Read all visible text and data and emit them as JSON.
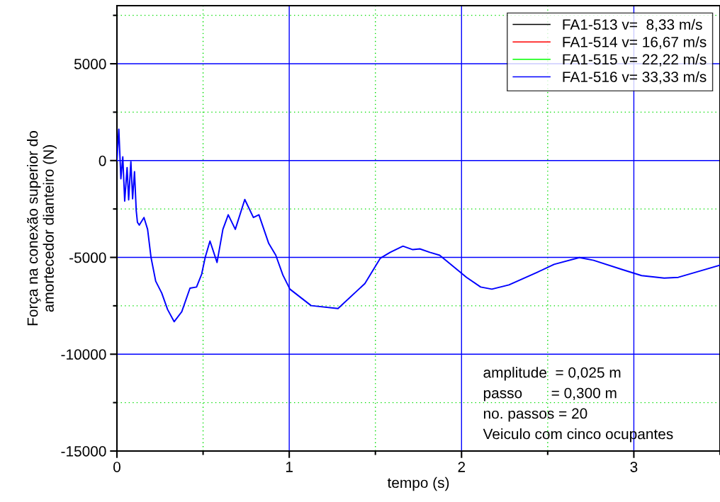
{
  "chart_data": {
    "type": "line",
    "xlabel": "tempo (s)",
    "ylabel": "Força na conexão superior do\namortecedor dianteiro (N)",
    "x": [
      0,
      0.011,
      0.023,
      0.034,
      0.045,
      0.059,
      0.068,
      0.081,
      0.091,
      0.102,
      0.112,
      0.119,
      0.13,
      0.157,
      0.178,
      0.198,
      0.225,
      0.26,
      0.294,
      0.332,
      0.376,
      0.424,
      0.462,
      0.492,
      0.512,
      0.54,
      0.581,
      0.615,
      0.646,
      0.687,
      0.742,
      0.792,
      0.824,
      0.881,
      0.922,
      0.963,
      1.004,
      1.127,
      1.283,
      1.439,
      1.529,
      1.586,
      1.66,
      1.717,
      1.758,
      1.816,
      1.873,
      1.963,
      2.029,
      2.111,
      2.176,
      2.275,
      2.439,
      2.537,
      2.684,
      2.766,
      2.93,
      3.045,
      3.176,
      3.258,
      3.389,
      3.5
    ],
    "series": [
      {
        "name": "FA1-513 v=  8,33 m/s",
        "color": "#000000",
        "values": [
          null,
          null,
          null,
          null,
          null,
          null,
          null,
          null,
          null,
          null,
          null,
          null,
          null,
          null,
          null,
          null,
          null,
          null,
          null,
          null,
          null,
          null,
          null,
          null,
          null,
          null,
          null,
          null,
          null,
          null,
          null,
          null,
          null,
          null,
          null,
          null,
          null,
          null,
          null,
          null,
          null,
          null,
          null,
          null,
          null,
          null,
          null,
          null,
          null,
          null,
          null,
          null,
          null,
          null,
          null,
          null,
          null,
          null,
          null,
          null,
          null,
          null
        ]
      },
      {
        "name": "FA1-514 v= 16,67 m/s",
        "color": "#ff0000",
        "values": [
          null,
          null,
          null,
          null,
          null,
          null,
          null,
          null,
          null,
          null,
          null,
          null,
          null,
          null,
          null,
          null,
          null,
          null,
          null,
          null,
          null,
          null,
          null,
          null,
          null,
          null,
          null,
          null,
          null,
          null,
          null,
          null,
          null,
          null,
          null,
          null,
          null,
          null,
          null,
          null,
          null,
          null,
          null,
          null,
          null,
          null,
          null,
          null,
          null,
          null,
          null,
          null,
          null,
          null,
          null,
          null,
          null,
          null,
          null,
          null,
          null,
          null
        ]
      },
      {
        "name": "FA1-515 v= 22,22 m/s",
        "color": "#00ff00",
        "values": [
          null,
          null,
          null,
          null,
          null,
          null,
          null,
          null,
          null,
          null,
          null,
          null,
          null,
          null,
          null,
          null,
          null,
          null,
          null,
          null,
          null,
          null,
          null,
          null,
          null,
          null,
          null,
          null,
          null,
          null,
          null,
          null,
          null,
          null,
          null,
          null,
          null,
          null,
          null,
          null,
          null,
          null,
          null,
          null,
          null,
          null,
          null,
          null,
          null,
          null,
          null,
          null,
          null,
          null,
          null,
          null,
          null,
          null,
          null,
          null,
          null,
          null
        ]
      },
      {
        "name": "FA1-516 v= 33,33 m/s",
        "color": "#0000ff",
        "values": [
          0,
          1620,
          -940,
          190,
          -2090,
          -360,
          -2030,
          -50,
          -1970,
          -570,
          -2580,
          -3190,
          -3330,
          -2940,
          -3550,
          -5010,
          -6230,
          -6840,
          -7690,
          -8320,
          -7810,
          -6590,
          -6530,
          -5860,
          -5010,
          -4160,
          -5260,
          -3550,
          -2800,
          -3550,
          -2010,
          -2940,
          -2800,
          -4280,
          -4890,
          -5910,
          -6640,
          -7490,
          -7640,
          -6350,
          -5040,
          -4740,
          -4420,
          -4600,
          -4560,
          -4740,
          -4890,
          -5550,
          -6030,
          -6530,
          -6640,
          -6420,
          -5770,
          -5360,
          -5010,
          -5150,
          -5620,
          -5940,
          -6070,
          -6030,
          -5690,
          -5400
        ]
      }
    ],
    "xlim": [
      0,
      3.5
    ],
    "xticks": [
      0,
      {
        "value": 0.5,
        "label": null
      },
      1,
      {
        "value": 1.5,
        "label": null
      },
      2,
      {
        "value": 2.5,
        "label": null
      },
      3,
      {
        "value": 3.5,
        "label": null
      }
    ],
    "ylim": [
      -15000,
      8000
    ],
    "yticks": [
      -15000,
      {
        "value": -12500,
        "label": null
      },
      -10000,
      {
        "value": -7500,
        "label": null
      },
      -5000,
      {
        "value": -2500,
        "label": null
      },
      0,
      {
        "value": 2500,
        "label": null
      },
      5000,
      {
        "value": 7500,
        "label": null
      }
    ],
    "grid": true,
    "legend": "top right",
    "annotations": [
      "amplitude  = 0,025 m",
      "passo       = 0,300 m",
      "no. passos = 20",
      "Veiculo com cinco ocupantes"
    ]
  }
}
